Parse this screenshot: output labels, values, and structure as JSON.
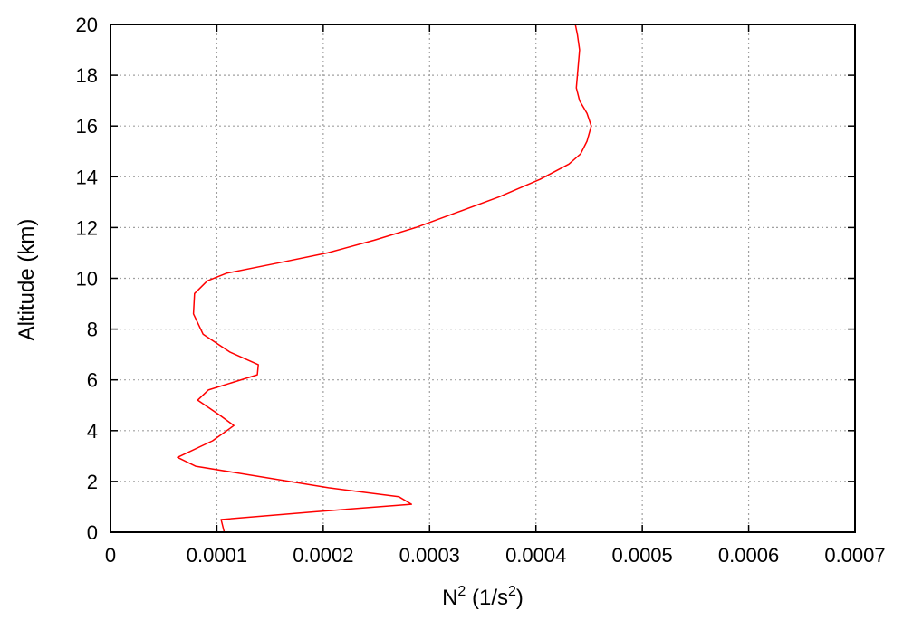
{
  "chart_data": {
    "type": "line",
    "xlabel_base": "N",
    "xlabel_sup": "2",
    "xlabel_mid": " (1/s",
    "xlabel_sup2": "2",
    "xlabel_end": ")",
    "ylabel": "Altitude (km)",
    "xlim": [
      0,
      0.0007
    ],
    "ylim": [
      0,
      20
    ],
    "x_ticks": [
      0,
      0.0001,
      0.0002,
      0.0003,
      0.0004,
      0.0005,
      0.0006,
      0.0007
    ],
    "x_tick_labels": [
      "0",
      "0.0001",
      "0.0002",
      "0.0003",
      "0.0004",
      "0.0005",
      "0.0006",
      "0.0007"
    ],
    "y_ticks": [
      0,
      2,
      4,
      6,
      8,
      10,
      12,
      14,
      16,
      18,
      20
    ],
    "y_tick_labels": [
      "0",
      "2",
      "4",
      "6",
      "8",
      "10",
      "12",
      "14",
      "16",
      "18",
      "20"
    ],
    "grid": true,
    "series": [
      {
        "color": "#ff0000",
        "x": [
          0.000107,
          0.000104,
          0.00019,
          0.000283,
          0.000271,
          0.000205,
          8e-05,
          6.3e-05,
          9.6e-05,
          0.000116,
          0.000103,
          8.2e-05,
          9.2e-05,
          0.000138,
          0.000139,
          0.000112,
          8.7e-05,
          7.8e-05,
          7.9e-05,
          9.1e-05,
          0.000109,
          0.000157,
          0.000204,
          0.000248,
          0.000287,
          0.000326,
          0.000365,
          0.000404,
          0.000431,
          0.000442,
          0.000448,
          0.000452,
          0.000448,
          0.000441,
          0.000438,
          0.000439,
          0.000441,
          0.000439,
          0.000437
        ],
        "y": [
          0,
          0.5,
          0.8,
          1.1,
          1.4,
          1.75,
          2.6,
          2.95,
          3.6,
          4.2,
          4.6,
          5.2,
          5.6,
          6.2,
          6.6,
          7.1,
          7.8,
          8.6,
          9.4,
          9.9,
          10.2,
          10.6,
          11.0,
          11.5,
          12.0,
          12.6,
          13.2,
          13.9,
          14.5,
          14.9,
          15.4,
          16.0,
          16.5,
          17.0,
          17.5,
          18.0,
          19.0,
          19.6,
          20.0
        ]
      }
    ]
  }
}
